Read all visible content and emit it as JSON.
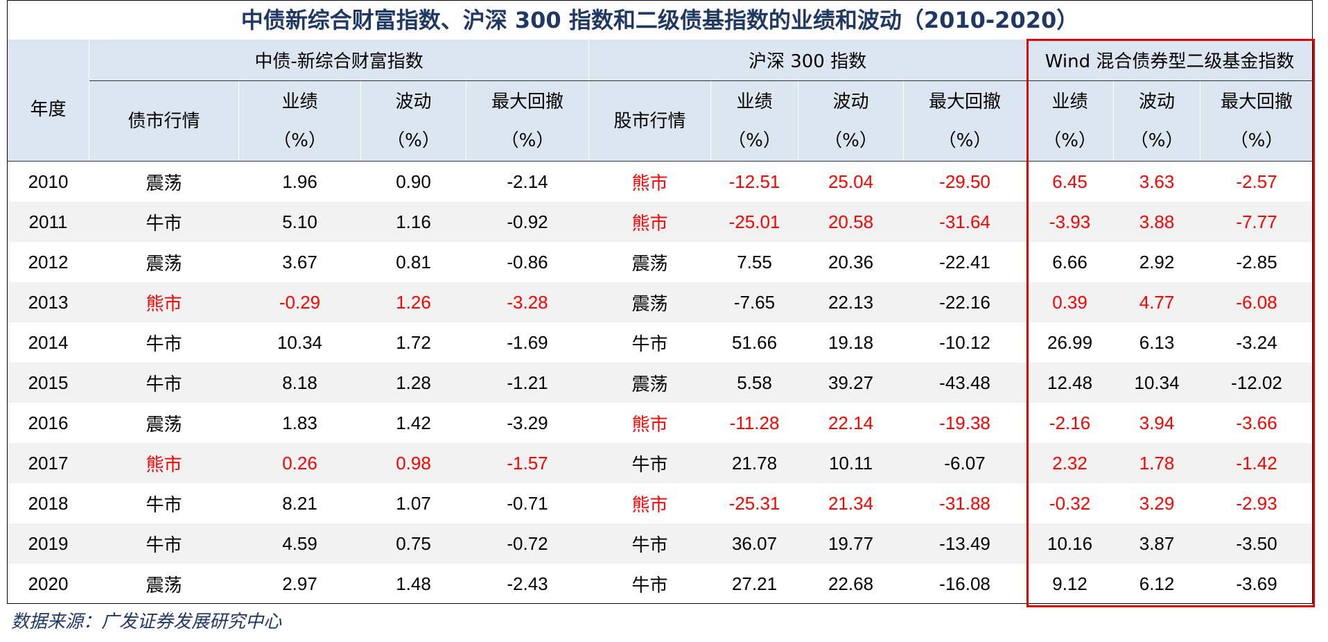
{
  "header": {
    "title": "中债新综合财富指数、沪深 300 指数和二级债基指数的业绩和波动（2010-2020）"
  },
  "table": {
    "year_header": "年度",
    "groups": [
      "中债-新综合财富指数",
      "沪深 300 指数",
      "Wind 混合债券型二级基金指数"
    ],
    "columns": [
      {
        "label": "债市行情"
      },
      {
        "label": "业绩",
        "unit": "（%）"
      },
      {
        "label": "波动",
        "unit": "（%）"
      },
      {
        "label": "最大回撤",
        "unit": "（%）"
      },
      {
        "label": "股市行情"
      },
      {
        "label": "业绩",
        "unit": "（%）"
      },
      {
        "label": "波动",
        "unit": "（%）"
      },
      {
        "label": "最大回撤",
        "unit": "（%）"
      },
      {
        "label": "业绩",
        "unit": "（%）"
      },
      {
        "label": "波动",
        "unit": "（%）"
      },
      {
        "label": "最大回撤",
        "unit": "（%）"
      }
    ],
    "rows": [
      {
        "year": "2010",
        "cells": [
          "震荡",
          "1.96",
          "0.90",
          "-2.14",
          "熊市",
          "-12.51",
          "25.04",
          "-29.50",
          "6.45",
          "3.63",
          "-2.57"
        ],
        "colors": [
          "#000000",
          "#000000",
          "#000000",
          "#000000",
          "#ff0000",
          "#ff0000",
          "#ff0000",
          "#ff0000",
          "#ff0000",
          "#ff0000",
          "#ff0000"
        ]
      },
      {
        "year": "2011",
        "cells": [
          "牛市",
          "5.10",
          "1.16",
          "-0.92",
          "熊市",
          "-25.01",
          "20.58",
          "-31.64",
          "-3.93",
          "3.88",
          "-7.77"
        ],
        "colors": [
          "#000000",
          "#000000",
          "#000000",
          "#000000",
          "#ff0000",
          "#ff0000",
          "#ff0000",
          "#ff0000",
          "#ff0000",
          "#ff0000",
          "#ff0000"
        ]
      },
      {
        "year": "2012",
        "cells": [
          "震荡",
          "3.67",
          "0.81",
          "-0.86",
          "震荡",
          "7.55",
          "20.36",
          "-22.41",
          "6.66",
          "2.92",
          "-2.85"
        ],
        "colors": [
          "#000000",
          "#000000",
          "#000000",
          "#000000",
          "#000000",
          "#000000",
          "#000000",
          "#000000",
          "#000000",
          "#000000",
          "#000000"
        ]
      },
      {
        "year": "2013",
        "cells": [
          "熊市",
          "-0.29",
          "1.26",
          "-3.28",
          "震荡",
          "-7.65",
          "22.13",
          "-22.16",
          "0.39",
          "4.77",
          "-6.08"
        ],
        "colors": [
          "#ff0000",
          "#ff0000",
          "#ff0000",
          "#ff0000",
          "#000000",
          "#000000",
          "#000000",
          "#000000",
          "#ff0000",
          "#ff0000",
          "#ff0000"
        ]
      },
      {
        "year": "2014",
        "cells": [
          "牛市",
          "10.34",
          "1.72",
          "-1.69",
          "牛市",
          "51.66",
          "19.18",
          "-10.12",
          "26.99",
          "6.13",
          "-3.24"
        ],
        "colors": [
          "#000000",
          "#000000",
          "#000000",
          "#000000",
          "#000000",
          "#000000",
          "#000000",
          "#000000",
          "#000000",
          "#000000",
          "#000000"
        ]
      },
      {
        "year": "2015",
        "cells": [
          "牛市",
          "8.18",
          "1.28",
          "-1.21",
          "震荡",
          "5.58",
          "39.27",
          "-43.48",
          "12.48",
          "10.34",
          "-12.02"
        ],
        "colors": [
          "#000000",
          "#000000",
          "#000000",
          "#000000",
          "#000000",
          "#000000",
          "#000000",
          "#000000",
          "#000000",
          "#000000",
          "#000000"
        ]
      },
      {
        "year": "2016",
        "cells": [
          "震荡",
          "1.83",
          "1.42",
          "-3.29",
          "熊市",
          "-11.28",
          "22.14",
          "-19.38",
          "-2.16",
          "3.94",
          "-3.66"
        ],
        "colors": [
          "#000000",
          "#000000",
          "#000000",
          "#000000",
          "#ff0000",
          "#ff0000",
          "#ff0000",
          "#ff0000",
          "#ff0000",
          "#ff0000",
          "#ff0000"
        ]
      },
      {
        "year": "2017",
        "cells": [
          "熊市",
          "0.26",
          "0.98",
          "-1.57",
          "牛市",
          "21.78",
          "10.11",
          "-6.07",
          "2.32",
          "1.78",
          "-1.42"
        ],
        "colors": [
          "#ff0000",
          "#ff0000",
          "#ff0000",
          "#ff0000",
          "#000000",
          "#000000",
          "#000000",
          "#000000",
          "#ff0000",
          "#ff0000",
          "#ff0000"
        ]
      },
      {
        "year": "2018",
        "cells": [
          "牛市",
          "8.21",
          "1.07",
          "-0.71",
          "熊市",
          "-25.31",
          "21.34",
          "-31.88",
          "-0.32",
          "3.29",
          "-2.93"
        ],
        "colors": [
          "#000000",
          "#000000",
          "#000000",
          "#000000",
          "#ff0000",
          "#ff0000",
          "#ff0000",
          "#ff0000",
          "#ff0000",
          "#ff0000",
          "#ff0000"
        ]
      },
      {
        "year": "2019",
        "cells": [
          "牛市",
          "4.59",
          "0.75",
          "-0.72",
          "牛市",
          "36.07",
          "19.77",
          "-13.49",
          "10.16",
          "3.87",
          "-3.50"
        ],
        "colors": [
          "#000000",
          "#000000",
          "#000000",
          "#000000",
          "#000000",
          "#000000",
          "#000000",
          "#000000",
          "#000000",
          "#000000",
          "#000000"
        ]
      },
      {
        "year": "2020",
        "cells": [
          "震荡",
          "2.97",
          "1.48",
          "-2.43",
          "牛市",
          "27.21",
          "22.68",
          "-16.08",
          "9.12",
          "6.12",
          "-3.69"
        ],
        "colors": [
          "#000000",
          "#000000",
          "#000000",
          "#000000",
          "#000000",
          "#000000",
          "#000000",
          "#000000",
          "#000000",
          "#000000",
          "#000000"
        ]
      }
    ]
  },
  "footer": {
    "source": "数据来源：广发证券发展研究中心"
  }
}
